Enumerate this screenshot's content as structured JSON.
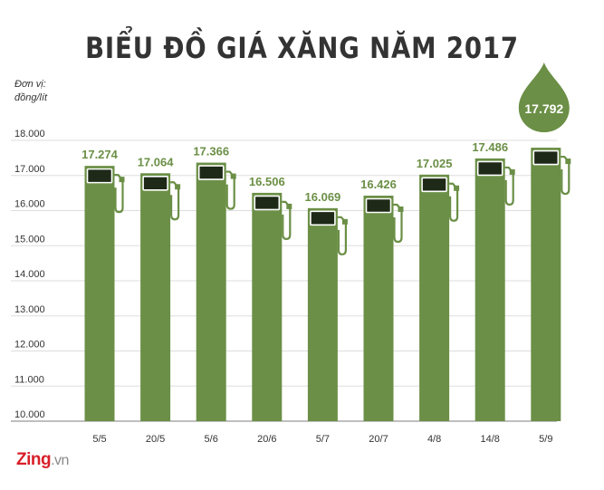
{
  "header": {
    "title": "BIỂU ĐỒ GIÁ XĂNG NĂM 2017",
    "unit_line1": "Đơn vị:",
    "unit_line2": "đồng/lít"
  },
  "brand": {
    "name": "Zing",
    "tld": ".vn"
  },
  "colors": {
    "bar": "#6b8f46",
    "bar_dark": "#1e2a17",
    "grid": "#dddddd",
    "drop": "#6b8f46",
    "text": "#333333"
  },
  "chart_data": {
    "type": "bar",
    "title": "BIỂU ĐỒ GIÁ XĂNG NĂM 2017",
    "ylabel": "Đơn vị: đồng/lít",
    "xlabel": "",
    "ylim": [
      10000,
      18000
    ],
    "yticks": [
      10000,
      11000,
      12000,
      13000,
      14000,
      15000,
      16000,
      17000,
      18000
    ],
    "ytick_labels": [
      "10.000",
      "11.000",
      "12.000",
      "13.000",
      "14.000",
      "15.000",
      "16.000",
      "17.000",
      "18.000"
    ],
    "categories": [
      "5/5",
      "20/5",
      "5/6",
      "20/6",
      "5/7",
      "20/7",
      "4/8",
      "14/8",
      "5/9"
    ],
    "values": [
      17274,
      17064,
      17366,
      16506,
      16069,
      16426,
      17025,
      17486,
      17792
    ],
    "value_labels": [
      "17.274",
      "17.064",
      "17.366",
      "16.506",
      "16.069",
      "16.426",
      "17.025",
      "17.486",
      "17.792"
    ],
    "highlight_index": 8,
    "grid": true
  }
}
